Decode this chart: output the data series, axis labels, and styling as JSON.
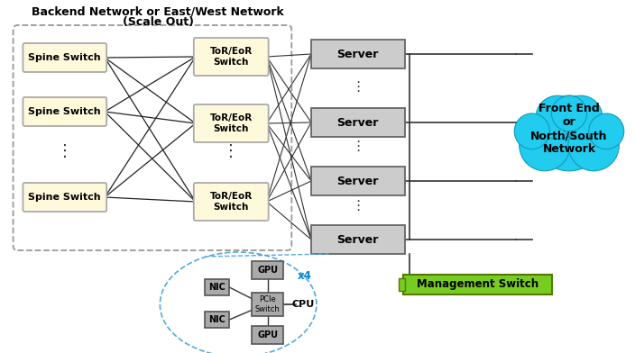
{
  "title_line1": "Backend Network or East/West Network",
  "title_line2": "(Scale Out)",
  "spine_label": "Spine Switch",
  "tor_label": "ToR/EoR\nSwitch",
  "server_label": "Server",
  "cloud_label": "Front End\nor\nNorth/South\nNetwork",
  "mgmt_label": "Management Switch",
  "gpu_label": "GPU",
  "nic_label": "NIC",
  "pcie_label": "PCIe\nSwitch",
  "cpu_label": "CPU",
  "x4_label": "x4",
  "spine_color": "#FFF9DC",
  "spine_edge": "#AAAAAA",
  "tor_color": "#FFF9DC",
  "tor_edge": "#AAAAAA",
  "server_color": "#CCCCCC",
  "server_edge": "#666666",
  "mgmt_color": "#77CC22",
  "mgmt_edge": "#557700",
  "cloud_color": "#22CCEE",
  "cloud_edge": "#1199BB",
  "outer_box_color": "#999999",
  "gpu_color": "#AAAAAA",
  "nic_color": "#AAAAAA",
  "pcie_color": "#AAAAAA",
  "x4_color": "#0088CC",
  "inset_circle_color": "#55AADD",
  "line_color": "#333333",
  "bg_color": "#FFFFFF",
  "title_fontsize": 9,
  "label_fontsize": 8,
  "small_fontsize": 7
}
